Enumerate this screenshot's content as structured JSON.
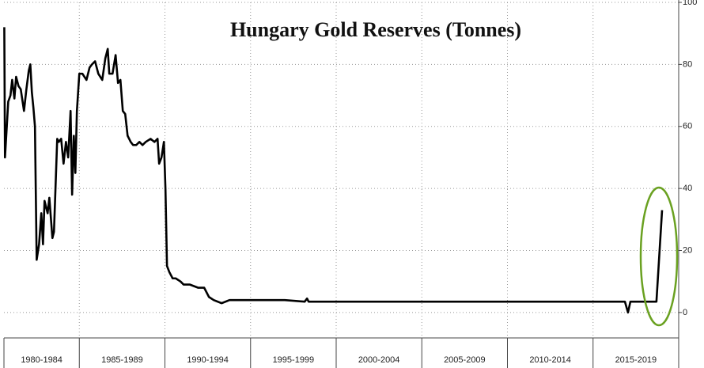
{
  "chart_data": {
    "type": "line",
    "title": "Hungary Gold Reserves (Tonnes)",
    "x": [
      1980.62,
      1980.66,
      1980.85,
      1980.98,
      1981.08,
      1981.21,
      1981.31,
      1981.45,
      1981.58,
      1981.77,
      1981.91,
      1982.05,
      1982.14,
      1982.23,
      1982.32,
      1982.41,
      1982.51,
      1982.65,
      1982.78,
      1982.88,
      1982.97,
      1983.15,
      1983.25,
      1983.43,
      1983.52,
      1983.71,
      1983.8,
      1983.94,
      1984.08,
      1984.22,
      1984.35,
      1984.49,
      1984.58,
      1984.68,
      1984.77,
      1984.86,
      1985,
      1985.18,
      1985.42,
      1985.6,
      1985.74,
      1985.92,
      1986.11,
      1986.34,
      1986.52,
      1986.66,
      1986.75,
      1986.94,
      1987.12,
      1987.26,
      1987.4,
      1987.54,
      1987.68,
      1987.82,
      1988.0,
      1988.14,
      1988.32,
      1988.51,
      1988.69,
      1988.88,
      1989.16,
      1989.39,
      1989.57,
      1989.66,
      1989.8,
      1989.94,
      1990.03,
      1990.12,
      1990.26,
      1990.45,
      1990.63,
      1990.91,
      1991.09,
      1991.46,
      1991.93,
      1992.29,
      1992.57,
      1992.85,
      1993.31,
      1993.77,
      1994.7,
      1995.62,
      1997.0,
      1998.16,
      1998.3,
      1998.39,
      2003.47,
      2012.7,
      2016.86,
      2017.04,
      2017.18,
      2018.7,
      2019.03
    ],
    "series": [
      {
        "name": "Hungary Gold Reserves",
        "color": "#000000",
        "values": [
          92,
          50,
          68,
          70,
          75,
          69,
          76,
          73,
          72,
          65,
          72,
          78,
          80,
          71,
          66,
          60,
          17,
          22,
          32,
          22,
          36,
          32,
          37,
          24,
          26,
          56,
          55,
          56,
          48,
          55,
          50,
          65,
          38,
          57,
          45,
          65,
          77,
          77,
          75,
          79,
          80,
          81,
          77,
          75,
          82,
          85,
          77,
          77,
          83,
          74,
          75,
          65,
          64,
          57,
          55,
          54,
          54,
          55,
          54,
          55,
          56,
          55,
          56,
          48,
          50,
          55,
          40,
          15,
          13,
          11,
          11,
          10,
          9,
          9,
          8,
          8,
          5,
          4,
          3,
          4,
          4,
          4,
          4,
          3.5,
          4.5,
          3.5,
          3.5,
          3.5,
          3.5,
          0,
          3.5,
          3.5,
          33
        ]
      }
    ],
    "xlim": [
      1980.6,
      2020
    ],
    "xticks": [
      {
        "value": 1980,
        "label": "1980-1984"
      },
      {
        "value": 1985,
        "label": "1985-1989"
      },
      {
        "value": 1990,
        "label": "1990-1994"
      },
      {
        "value": 1995,
        "label": "1995-1999"
      },
      {
        "value": 2000,
        "label": "2000-2004"
      },
      {
        "value": 2005,
        "label": "2005-2009"
      },
      {
        "value": 2010,
        "label": "2010-2014"
      },
      {
        "value": 2015,
        "label": "2015-2019"
      }
    ],
    "ylim": [
      -8.2,
      100
    ],
    "yticks": [
      0,
      20,
      40,
      60,
      80,
      100
    ],
    "grid": true
  }
}
